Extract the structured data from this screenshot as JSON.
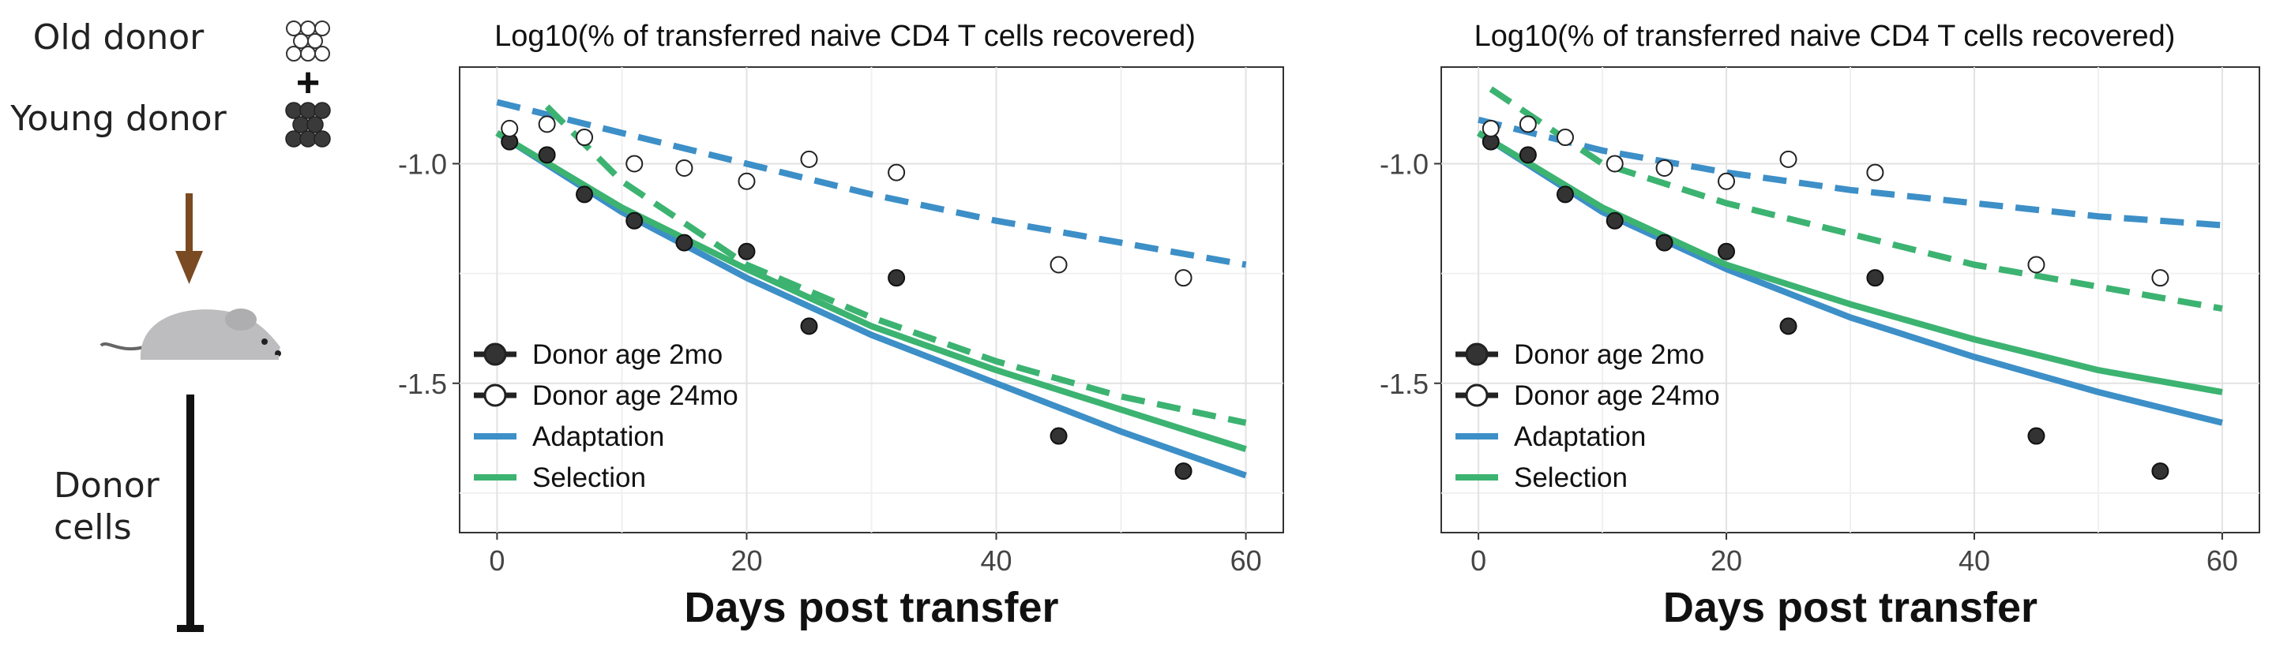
{
  "schematic": {
    "old_donor_label": "Old donor",
    "plus_sign": "+",
    "young_donor_label": "Young donor",
    "donor_cells_line1": "Donor",
    "donor_cells_line2": "cells",
    "colors": {
      "arrow": "#7a4a22",
      "mouse": "#bdbdbf",
      "young_cells": "#3a3a3a"
    },
    "icons": [
      "old-donor-cells-icon",
      "young-donor-cells-icon",
      "down-arrow-icon",
      "mouse-icon",
      "timeline-bar-icon"
    ]
  },
  "chart_data": [
    {
      "type": "scatter",
      "title": "Log10(% of transferred naive CD4 T cells recovered)",
      "xlabel": "Days post transfer",
      "ylabel": "",
      "xlim": [
        -3,
        63
      ],
      "ylim": [
        -1.84,
        -0.78
      ],
      "xticks": [
        0,
        20,
        40,
        60
      ],
      "yticks": [
        -1.0,
        -1.5
      ],
      "ytick_labels": [
        "-1.0",
        "-1.5"
      ],
      "grid": true,
      "legend_position": "bottom-left",
      "legend": [
        {
          "label": "Donor age 2mo",
          "kind": "filled-point"
        },
        {
          "label": "Donor age 24mo",
          "kind": "open-point"
        },
        {
          "label": "Adaptation",
          "kind": "line",
          "color": "#3d8fc7"
        },
        {
          "label": "Selection",
          "kind": "line",
          "color": "#3cb371"
        }
      ],
      "points": [
        {
          "name": "Donor age 2mo",
          "style": "filled",
          "x": [
            1,
            4,
            7,
            11,
            15,
            20,
            25,
            32,
            45,
            55
          ],
          "y": [
            -0.95,
            -0.98,
            -1.07,
            -1.13,
            -1.18,
            -1.2,
            -1.37,
            -1.26,
            -1.62,
            -1.7
          ]
        },
        {
          "name": "Donor age 24mo",
          "style": "open",
          "x": [
            1,
            4,
            7,
            11,
            15,
            20,
            25,
            32,
            45,
            55
          ],
          "y": [
            -0.92,
            -0.91,
            -0.94,
            -1.0,
            -1.01,
            -1.04,
            -0.99,
            -1.02,
            -1.23,
            -1.26
          ]
        }
      ],
      "lines": [
        {
          "name": "Adaptation",
          "donor": "2mo",
          "dash": "solid",
          "color": "#3d8fc7",
          "x": [
            0,
            10,
            20,
            30,
            40,
            50,
            60
          ],
          "y": [
            -0.93,
            -1.11,
            -1.26,
            -1.39,
            -1.5,
            -1.61,
            -1.71
          ]
        },
        {
          "name": "Selection",
          "donor": "2mo",
          "dash": "solid",
          "color": "#3cb371",
          "x": [
            0,
            10,
            20,
            30,
            40,
            50,
            60
          ],
          "y": [
            -0.93,
            -1.1,
            -1.24,
            -1.37,
            -1.47,
            -1.56,
            -1.65
          ]
        },
        {
          "name": "Adaptation",
          "donor": "24mo",
          "dash": "dashed",
          "color": "#3d8fc7",
          "x": [
            0,
            10,
            20,
            30,
            40,
            50,
            60
          ],
          "y": [
            -0.86,
            -0.93,
            -1.0,
            -1.07,
            -1.13,
            -1.18,
            -1.23
          ]
        },
        {
          "name": "Selection",
          "donor": "24mo",
          "dash": "dashed",
          "color": "#3cb371",
          "x": [
            4,
            10,
            20,
            30,
            40,
            50,
            60
          ],
          "y": [
            -0.87,
            -1.04,
            -1.23,
            -1.35,
            -1.45,
            -1.53,
            -1.59
          ]
        }
      ]
    },
    {
      "type": "scatter",
      "title": "Log10(% of transferred naive CD4 T cells recovered)",
      "xlabel": "Days post transfer",
      "ylabel": "",
      "xlim": [
        -3,
        63
      ],
      "ylim": [
        -1.84,
        -0.78
      ],
      "xticks": [
        0,
        20,
        40,
        60
      ],
      "yticks": [
        -1.0,
        -1.5
      ],
      "ytick_labels": [
        "-1.0",
        "-1.5"
      ],
      "grid": true,
      "legend_position": "bottom-left",
      "legend": [
        {
          "label": "Donor age 2mo",
          "kind": "filled-point"
        },
        {
          "label": "Donor age 24mo",
          "kind": "open-point"
        },
        {
          "label": "Adaptation",
          "kind": "line",
          "color": "#3d8fc7"
        },
        {
          "label": "Selection",
          "kind": "line",
          "color": "#3cb371"
        }
      ],
      "points": [
        {
          "name": "Donor age 2mo",
          "style": "filled",
          "x": [
            1,
            4,
            7,
            11,
            15,
            20,
            25,
            32,
            45,
            55
          ],
          "y": [
            -0.95,
            -0.98,
            -1.07,
            -1.13,
            -1.18,
            -1.2,
            -1.37,
            -1.26,
            -1.62,
            -1.7
          ]
        },
        {
          "name": "Donor age 24mo",
          "style": "open",
          "x": [
            1,
            4,
            7,
            11,
            15,
            20,
            25,
            32,
            45,
            55
          ],
          "y": [
            -0.92,
            -0.91,
            -0.94,
            -1.0,
            -1.01,
            -1.04,
            -0.99,
            -1.02,
            -1.23,
            -1.26
          ]
        }
      ],
      "lines": [
        {
          "name": "Adaptation",
          "donor": "2mo",
          "dash": "solid",
          "color": "#3d8fc7",
          "x": [
            0,
            10,
            20,
            30,
            40,
            50,
            60
          ],
          "y": [
            -0.93,
            -1.11,
            -1.24,
            -1.35,
            -1.44,
            -1.52,
            -1.59
          ]
        },
        {
          "name": "Selection",
          "donor": "2mo",
          "dash": "solid",
          "color": "#3cb371",
          "x": [
            0,
            10,
            20,
            30,
            40,
            50,
            60
          ],
          "y": [
            -0.93,
            -1.1,
            -1.23,
            -1.32,
            -1.4,
            -1.47,
            -1.52
          ]
        },
        {
          "name": "Adaptation",
          "donor": "24mo",
          "dash": "dashed",
          "color": "#3d8fc7",
          "x": [
            0,
            10,
            20,
            30,
            40,
            50,
            60
          ],
          "y": [
            -0.9,
            -0.97,
            -1.02,
            -1.06,
            -1.09,
            -1.12,
            -1.14
          ]
        },
        {
          "name": "Selection",
          "donor": "24mo",
          "dash": "dashed",
          "color": "#3cb371",
          "x": [
            1,
            10,
            20,
            30,
            40,
            50,
            60
          ],
          "y": [
            -0.83,
            -1.0,
            -1.09,
            -1.16,
            -1.23,
            -1.28,
            -1.33
          ]
        }
      ]
    }
  ]
}
